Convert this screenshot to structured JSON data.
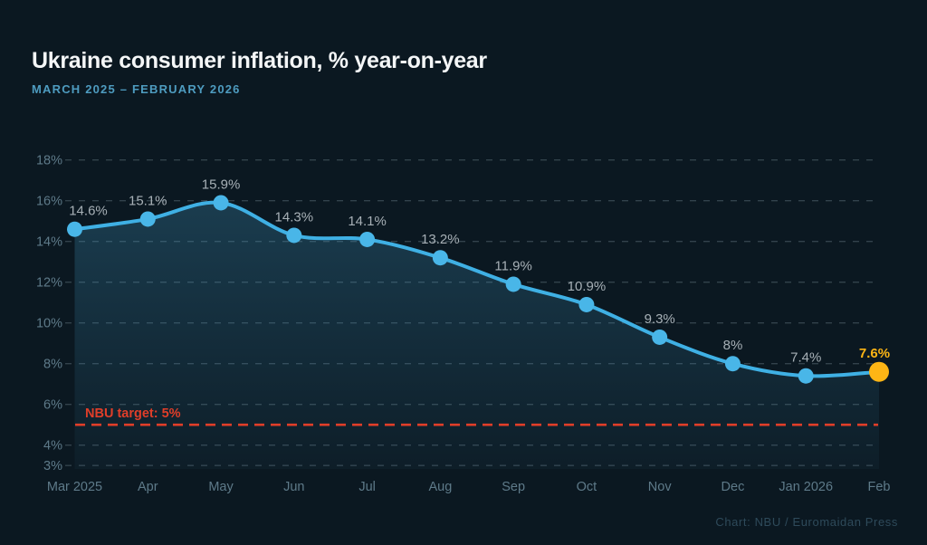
{
  "chart_data": {
    "type": "line",
    "title": "Ukraine consumer inflation, % year-on-year",
    "subtitle": "MARCH 2025 – FEBRUARY 2026",
    "xlabel": "",
    "ylabel": "",
    "categories": [
      "Mar 2025",
      "Apr",
      "May",
      "Jun",
      "Jul",
      "Aug",
      "Sep",
      "Oct",
      "Nov",
      "Dec",
      "Jan 2026",
      "Feb"
    ],
    "series": [
      {
        "name": "Consumer inflation, % year-on-year",
        "values": [
          14.6,
          15.1,
          15.9,
          14.3,
          14.1,
          13.2,
          11.9,
          10.9,
          9.3,
          8,
          7.4,
          7.6
        ]
      }
    ],
    "point_labels": [
      "14.6%",
      "15.1%",
      "15.9%",
      "14.3%",
      "14.1%",
      "13.2%",
      "11.9%",
      "10.9%",
      "9.3%",
      "8%",
      "7.4%",
      "7.6%"
    ],
    "y_ticks": [
      3,
      4,
      6,
      8,
      10,
      12,
      14,
      16,
      18
    ],
    "y_tick_labels": [
      "3%",
      "4%",
      "6%",
      "8%",
      "10%",
      "12%",
      "14%",
      "16%",
      "18%"
    ],
    "ylim": [
      2.8,
      18.6
    ],
    "grid": "horizontal-dashed",
    "legend": "none",
    "area_fill": true,
    "smooth": true,
    "target_line": {
      "value": 5,
      "label": "NBU target: 5%"
    },
    "highlight_last_point": true
  },
  "footer": {
    "credit": "Chart: NBU / Euromaidan Press"
  },
  "colors": {
    "background": "#0B1821",
    "line": "#3FB0E4",
    "marker": "#49B6E8",
    "highlight": "#FDB515",
    "area": "#46A5D2",
    "grid": "#8DA4B1",
    "axis_label": "#5E7A89",
    "data_label": "#A7B0B6",
    "target": "#E03E29",
    "title": "#F4F6F7",
    "subtitle": "#4E9CC0",
    "credit": "#2E4A5A"
  }
}
